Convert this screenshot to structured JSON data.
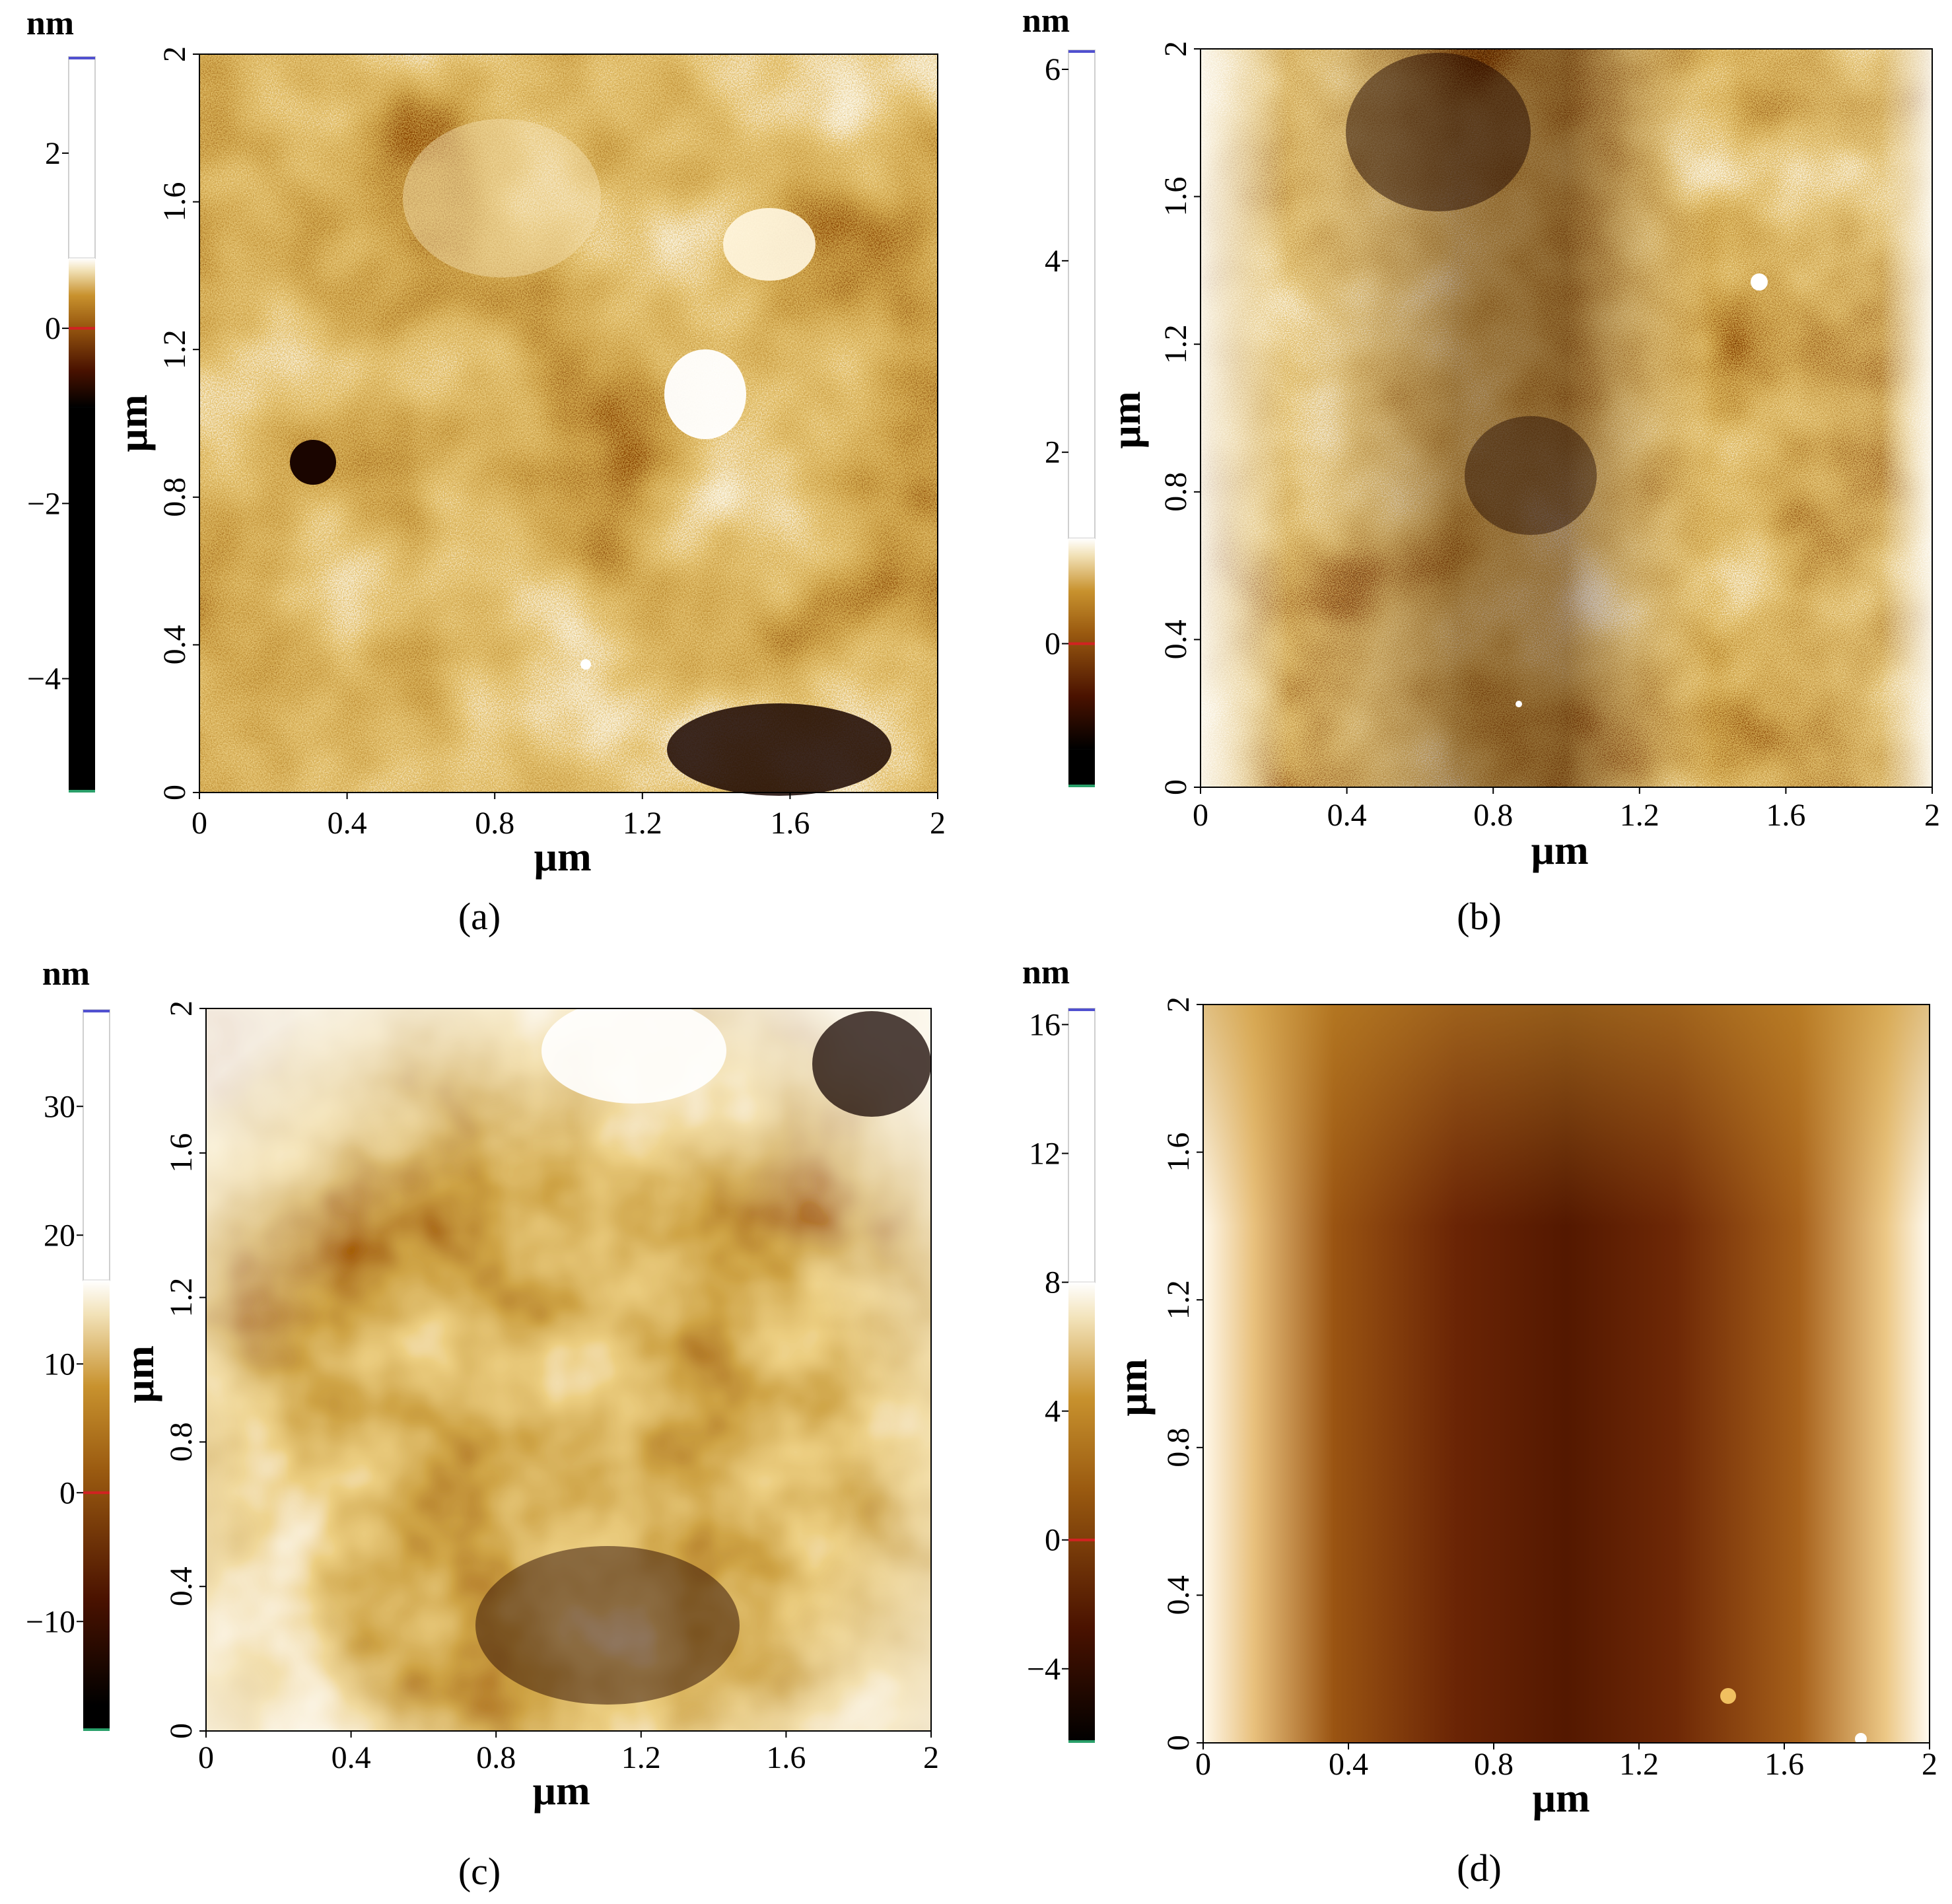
{
  "figure": {
    "panels": [
      {
        "caption": "(a)",
        "colorbar": {
          "unit": "nm",
          "ticks": [
            "2",
            "0",
            "−2",
            "−4"
          ],
          "tick_values": [
            2,
            0,
            -2,
            -4
          ],
          "min": -5.3,
          "max": 3.1,
          "white_above": 0.8,
          "black_below": -0.9
        },
        "x_axis": {
          "label": "µm",
          "ticks": [
            "0",
            "0.4",
            "0.8",
            "1.2",
            "1.6",
            "2"
          ]
        },
        "y_axis": {
          "label": "µm",
          "ticks": [
            "0",
            "0.4",
            "0.8",
            "1.2",
            "1.6",
            "2"
          ]
        },
        "texture": "grainy"
      },
      {
        "caption": "(b)",
        "colorbar": {
          "unit": "nm",
          "ticks": [
            "6",
            "4",
            "2",
            "0"
          ],
          "tick_values": [
            6,
            4,
            2,
            0
          ],
          "min": -1.5,
          "max": 6.2,
          "white_above": 1.1,
          "black_below": -1.1
        },
        "x_axis": {
          "label": "µm",
          "ticks": [
            "0",
            "0.4",
            "0.8",
            "1.2",
            "1.6",
            "2"
          ]
        },
        "y_axis": {
          "label": "µm",
          "ticks": [
            "0",
            "0.4",
            "0.8",
            "1.2",
            "1.6",
            "2"
          ]
        },
        "texture": "grainy"
      },
      {
        "caption": "(c)",
        "colorbar": {
          "unit": "nm",
          "ticks": [
            "30",
            "20",
            "10",
            "0",
            "−10"
          ],
          "tick_values": [
            30,
            20,
            10,
            0,
            -10
          ],
          "min": -18.5,
          "max": 37.5,
          "white_above": 16.5,
          "black_below": -16.5
        },
        "x_axis": {
          "label": "µm",
          "ticks": [
            "0",
            "0.4",
            "0.8",
            "1.2",
            "1.6",
            "2"
          ]
        },
        "y_axis": {
          "label": "µm",
          "ticks": [
            "0",
            "0.4",
            "0.8",
            "1.2",
            "1.6",
            "2"
          ]
        },
        "texture": "smooth"
      },
      {
        "caption": "(d)",
        "colorbar": {
          "unit": "nm",
          "ticks": [
            "16",
            "12",
            "8",
            "4",
            "0",
            "−4"
          ],
          "tick_values": [
            16,
            12,
            8,
            4,
            0,
            -4
          ],
          "min": -6.3,
          "max": 16.5,
          "white_above": 8,
          "black_below": -6.3
        },
        "x_axis": {
          "label": "µm",
          "ticks": [
            "0",
            "0.4",
            "0.8",
            "1.2",
            "1.6",
            "2"
          ]
        },
        "y_axis": {
          "label": "µm",
          "ticks": [
            "0",
            "0.4",
            "0.8",
            "1.2",
            "1.6",
            "2"
          ]
        },
        "texture": "smooth"
      }
    ],
    "colors": {
      "black": "#000000",
      "dark_brown": "#4a1200",
      "brown": "#9a5a10",
      "gold": "#c8922e",
      "light": "#f2e2b8",
      "white": "#ffffff",
      "zero_marker": "#d22222",
      "top_marker": "#5050d0",
      "frame_edge": "#2aa06a"
    }
  }
}
